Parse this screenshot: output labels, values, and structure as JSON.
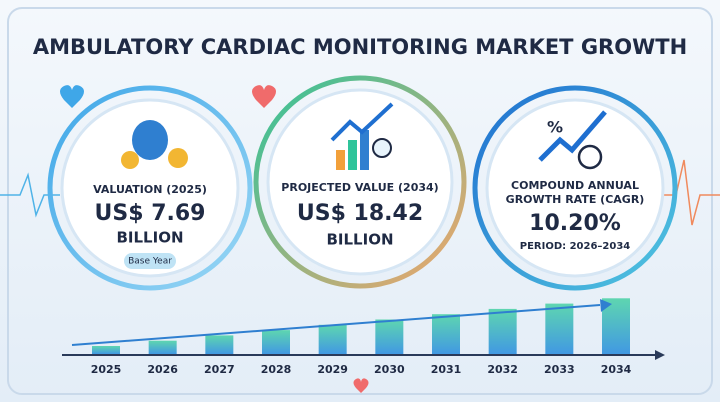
{
  "header": {
    "title": "AMBULATORY CARDIAC MONITORING MARKET GROWTH"
  },
  "cards": [
    {
      "label": "VALUATION (2025)",
      "value": "US$ 7.69",
      "unit": "BILLION",
      "badge": "Base Year"
    },
    {
      "label": "PROJECTED VALUE (2034)",
      "value": "US$ 18.42",
      "unit": "BILLION"
    },
    {
      "label_lines": [
        "COMPOUND ANNUAL",
        "GROWTH RATE (CAGR)"
      ],
      "value": "10.20%",
      "note": "PERIOD: 2026–2034"
    }
  ],
  "timeline": {
    "years": [
      "2025",
      "2026",
      "2027",
      "2028",
      "2029",
      "2030",
      "2031",
      "2032",
      "2033",
      "2034"
    ]
  }
}
